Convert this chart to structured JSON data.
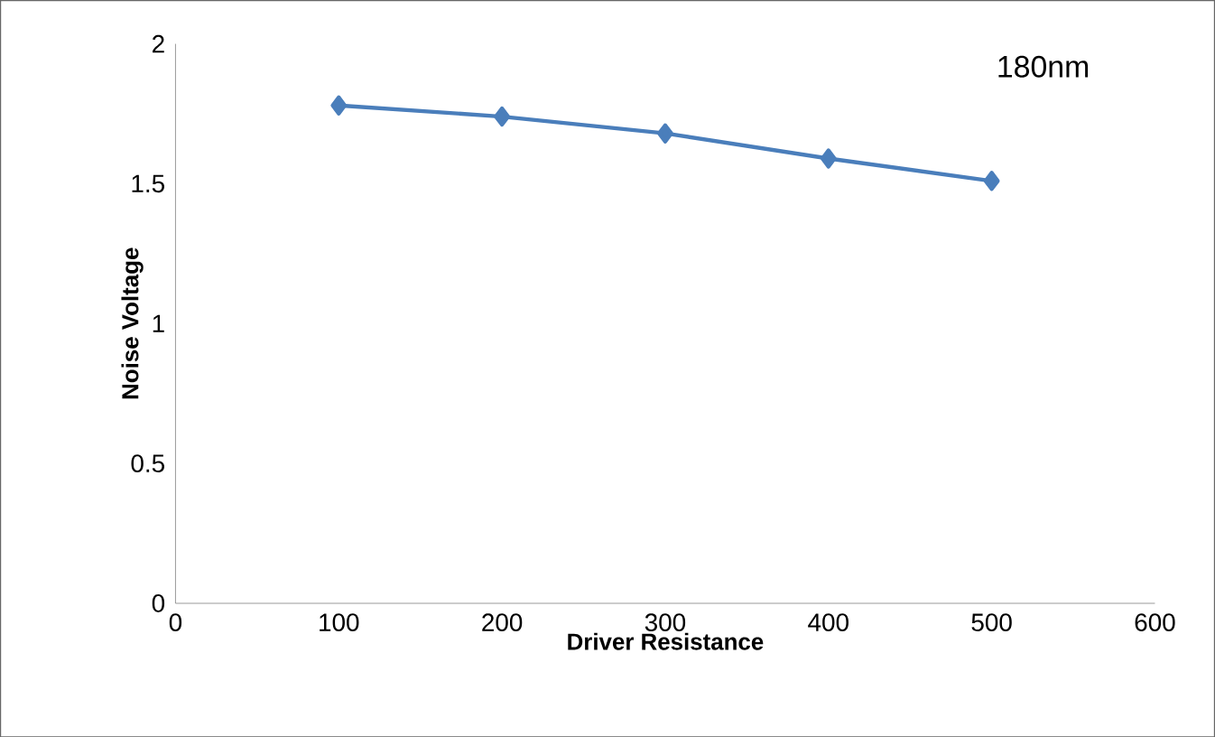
{
  "chart_data": {
    "type": "line",
    "xlabel": "Driver Resistance",
    "ylabel": "Noise Voltage",
    "annotations": [
      "180nm"
    ],
    "x": [
      100,
      200,
      300,
      400,
      500
    ],
    "series": [
      {
        "color": "#4a7ebb",
        "values": [
          1.78,
          1.74,
          1.68,
          1.59,
          1.51
        ]
      }
    ],
    "xlim": [
      0,
      600
    ],
    "xticks": [
      0,
      100,
      200,
      300,
      400,
      500,
      600
    ],
    "ylim": [
      0,
      2
    ],
    "yticks": [
      0,
      0.5,
      1,
      1.5,
      2
    ],
    "marker": "diamond",
    "line_style": "solid"
  }
}
